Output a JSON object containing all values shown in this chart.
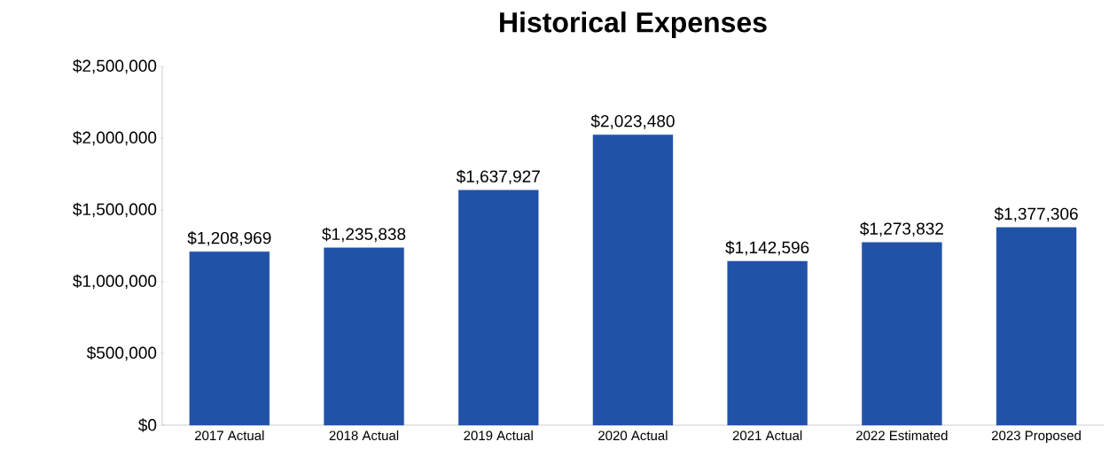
{
  "chart_data": {
    "type": "bar",
    "title": "Historical Expenses",
    "categories": [
      "2017 Actual",
      "2018 Actual",
      "2019 Actual",
      "2020 Actual",
      "2021 Actual",
      "2022 Estimated",
      "2023 Proposed"
    ],
    "values": [
      1208969,
      1235838,
      1637927,
      2023480,
      1142596,
      1273832,
      1377306
    ],
    "value_labels": [
      "$1,208,969",
      "$1,235,838",
      "$1,637,927",
      "$2,023,480",
      "$1,142,596",
      "$1,273,832",
      "$1,377,306"
    ],
    "color": "#2152a8",
    "ylim": [
      0,
      2500000
    ],
    "yticks": [
      {
        "value": 0,
        "label": "$0"
      },
      {
        "value": 500000,
        "label": "$500,000"
      },
      {
        "value": 1000000,
        "label": "$1,000,000"
      },
      {
        "value": 1500000,
        "label": "$1,500,000"
      },
      {
        "value": 2000000,
        "label": "$2,000,000"
      },
      {
        "value": 2500000,
        "label": "$2,500,000"
      }
    ],
    "grid": false
  }
}
